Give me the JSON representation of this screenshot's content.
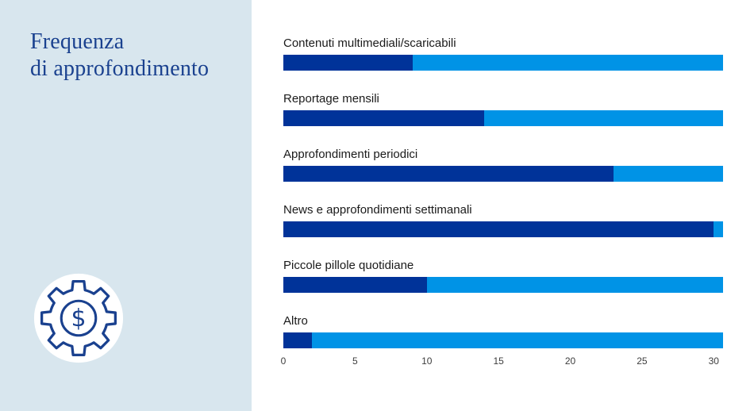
{
  "sidebar": {
    "title_line1": "Frequenza",
    "title_line2": "di approfondimento",
    "title_color": "#1a418f",
    "background": "#d8e6ee",
    "icon": {
      "name": "gear-dollar-icon",
      "symbol": "$",
      "stroke_color": "#1a418f",
      "circle_fill": "#ffffff"
    }
  },
  "chart_data": {
    "type": "bar",
    "orientation": "horizontal",
    "title": "Frequenza di approfondimento",
    "categories": [
      "Contenuti multimediali/scaricabili",
      "Reportage mensili",
      "Approfondimenti periodici",
      "News e approfondimenti settimanali",
      "Piccole pillole quotidiane",
      "Altro"
    ],
    "values": [
      9,
      14,
      23,
      30,
      10,
      2
    ],
    "xlim": [
      0,
      30.65
    ],
    "x_ticks": [
      0,
      5,
      10,
      15,
      20,
      25,
      30
    ],
    "grid": false,
    "legend": false,
    "bar_color": "#003399",
    "track_color": "#0093e6",
    "note_track": "light blue background bar spans full axis width behind each value bar"
  }
}
